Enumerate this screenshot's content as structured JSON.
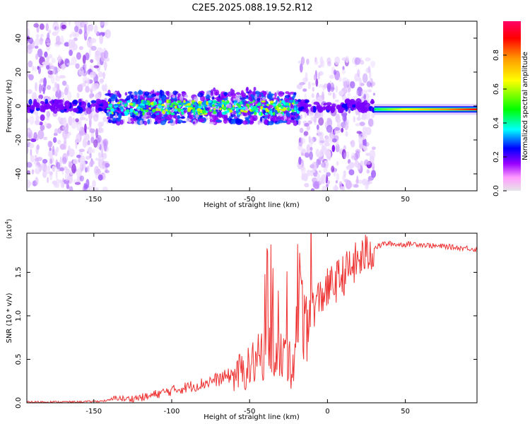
{
  "figure_title": "C2E5.2025.088.19.52.R12",
  "chart_data": [
    {
      "type": "heatmap",
      "panel": "spectrogram",
      "xlabel": "Height of straight line (km)",
      "ylabel": "Frequency (Hz)",
      "xlim": [
        -193,
        96
      ],
      "ylim": [
        -50,
        50
      ],
      "xticks": [
        -150,
        -100,
        -50,
        0,
        50
      ],
      "yticks": [
        -40,
        -20,
        0,
        20,
        40
      ],
      "colorbar": {
        "label": "Normalized spectral amplitude",
        "range": [
          0.0,
          1.0
        ],
        "ticks": [
          0.0,
          0.2,
          0.4,
          0.6,
          0.8
        ],
        "colors": [
          "#e6e6e6",
          "#ff99ff",
          "#9900ff",
          "#0000ff",
          "#00ffff",
          "#00ff00",
          "#ffff00",
          "#ff9900",
          "#ff0000",
          "#ff0066"
        ]
      },
      "regions": [
        {
          "x": [
            -193,
            -141
          ],
          "freq": [
            -50,
            50
          ],
          "level": 0.08,
          "description": "broadband noise"
        },
        {
          "x": [
            -141,
            -18
          ],
          "center_freq": -1,
          "bandwidth": 14,
          "peak_level": 0.45,
          "description": "main narrow band"
        },
        {
          "x": [
            -18,
            30
          ],
          "freq": [
            -50,
            28
          ],
          "level": 0.1,
          "description": "broadband noise with core near 0 Hz"
        },
        {
          "x": [
            30,
            96
          ],
          "center_freq": -2,
          "bandwidth": 4,
          "peak_level": 1.0,
          "description": "strong narrow band"
        }
      ]
    },
    {
      "type": "line",
      "panel": "snr",
      "xlabel": "Height of straight line (km)",
      "ylabel": "SNR (10 * v/v)",
      "multiplier_label": "(x10",
      "multiplier_exp": "4",
      "xlim": [
        -193,
        96
      ],
      "ylim": [
        0,
        1.95
      ],
      "xticks": [
        -150,
        -100,
        -50,
        0,
        50
      ],
      "yticks": [
        0.0,
        0.5,
        1.0,
        1.5
      ],
      "ytick_labels": [
        "0.0",
        "0.5",
        "1.0",
        "1.5"
      ],
      "color": "#ee3333",
      "series": [
        {
          "x": [
            -193,
            -180,
            -160,
            -145,
            -140,
            -135,
            -130,
            -125,
            -120,
            -115,
            -110,
            -105,
            -100,
            -95,
            -90,
            -85,
            -80,
            -75,
            -70,
            -65,
            -60,
            -55,
            -50,
            -47,
            -44,
            -41,
            -38,
            -35,
            -32,
            -29,
            -26,
            -23,
            -20,
            -17,
            -14,
            -11,
            -8,
            -5,
            -2,
            0,
            3,
            6,
            9,
            12,
            15,
            18,
            21,
            24,
            27,
            30,
            33,
            36,
            40,
            45,
            50,
            55,
            60,
            65,
            70,
            75,
            80,
            85,
            90,
            96
          ],
          "y": [
            0.01,
            0.01,
            0.01,
            0.02,
            0.03,
            0.06,
            0.04,
            0.05,
            0.06,
            0.07,
            0.1,
            0.12,
            0.14,
            0.16,
            0.18,
            0.2,
            0.22,
            0.25,
            0.27,
            0.3,
            0.33,
            0.36,
            0.4,
            0.48,
            0.5,
            0.6,
            0.75,
            0.7,
            0.45,
            0.55,
            0.52,
            0.38,
            0.85,
            1.05,
            0.98,
            1.1,
            1.12,
            1.2,
            1.28,
            1.3,
            1.35,
            1.4,
            1.45,
            1.5,
            1.55,
            1.6,
            1.65,
            1.7,
            1.72,
            1.78,
            1.8,
            1.83,
            1.83,
            1.82,
            1.82,
            1.83,
            1.82,
            1.81,
            1.8,
            1.8,
            1.79,
            1.78,
            1.78,
            1.76
          ]
        }
      ]
    }
  ]
}
